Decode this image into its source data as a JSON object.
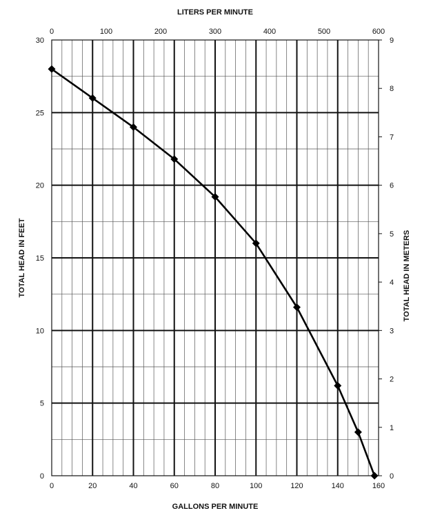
{
  "chart_data": {
    "type": "line",
    "xlabel": "GALLONS PER MINUTE",
    "ylabel": "TOTAL HEAD IN FEET",
    "x2label": "LITERS PER MINUTE",
    "y2label": "TOTAL HEAD IN METERS",
    "xlim": [
      0,
      160
    ],
    "ylim": [
      0,
      30
    ],
    "x2lim": [
      0,
      600
    ],
    "y2lim": [
      0,
      9
    ],
    "xticks": [
      0,
      20,
      40,
      60,
      80,
      100,
      120,
      140,
      160
    ],
    "yticks": [
      0,
      5,
      10,
      15,
      20,
      25,
      30
    ],
    "x2ticks": [
      0,
      100,
      200,
      300,
      400,
      500,
      600
    ],
    "y2ticks": [
      0,
      1,
      2,
      3,
      4,
      5,
      6,
      7,
      8,
      9
    ],
    "grid": true,
    "series": [
      {
        "x": [
          0,
          20,
          40,
          60,
          80,
          100,
          120,
          140,
          150,
          158
        ],
        "y": [
          28,
          26,
          24,
          21.8,
          19.2,
          16,
          11.6,
          6.2,
          3,
          0
        ]
      }
    ]
  }
}
